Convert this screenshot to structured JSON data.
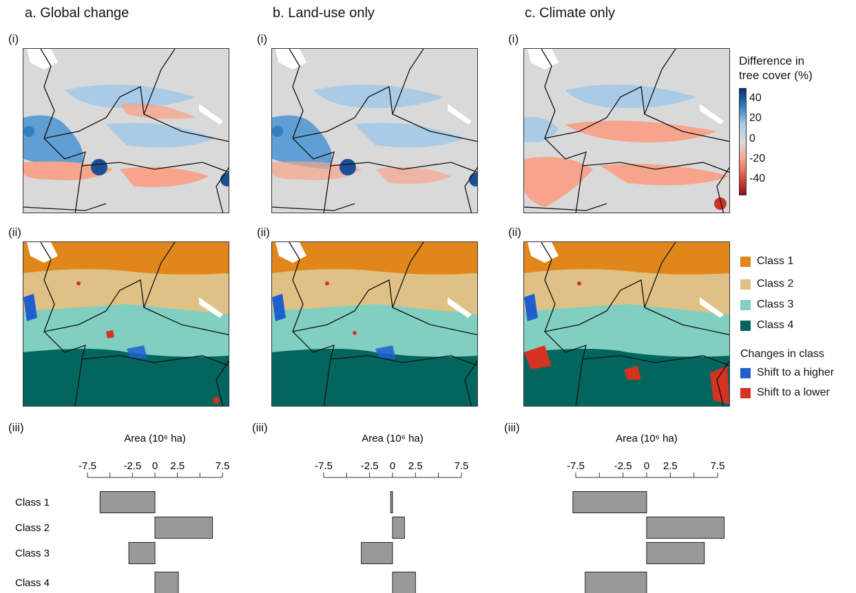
{
  "columns": [
    {
      "title": "a. Global change"
    },
    {
      "title": "b. Land-use only"
    },
    {
      "title": "c. Climate only"
    }
  ],
  "panel_tags": {
    "i": "(i)",
    "ii": "(ii)",
    "iii": "(iii)"
  },
  "tree_cover_legend": {
    "title_line1": "Difference in",
    "title_line2": "tree cover (%)",
    "ticks": [
      "40",
      "20",
      "0",
      "-20",
      "-40"
    ],
    "colors": [
      "#0b2e6b",
      "#2f7fc1",
      "#a9cbe6",
      "#d9d9d9",
      "#f6a58c",
      "#e0533f",
      "#8b0f1a"
    ]
  },
  "class_legend": {
    "items": [
      {
        "label": "Class 1",
        "color": "#e1861a"
      },
      {
        "label": "Class 2",
        "color": "#dfc085"
      },
      {
        "label": "Class 3",
        "color": "#80cfc0"
      },
      {
        "label": "Class 4",
        "color": "#03665e"
      }
    ],
    "changes_title": "Changes in class",
    "changes": [
      {
        "label": "Shift to a higher",
        "color": "#1f5ecf"
      },
      {
        "label": "Shift to a lower",
        "color": "#d63222"
      }
    ]
  },
  "chart_data": [
    {
      "type": "bar",
      "orientation": "horizontal",
      "xlabel": "Area (10⁶ ha)",
      "xlim": [
        -7.5,
        7.5
      ],
      "xticks": [
        -7.5,
        -2.5,
        0,
        2.5,
        7.5
      ],
      "tick_labels": [
        "-7.5",
        "-2.5",
        "0",
        "2.5",
        "7.5"
      ],
      "minor_ticks": [
        -5,
        5
      ],
      "categories": [
        "Class 1",
        "Class 2",
        "Class 3",
        "Class 4"
      ],
      "values": [
        -6.1,
        6.4,
        -2.9,
        2.6
      ],
      "bar_color": "#999999"
    },
    {
      "type": "bar",
      "orientation": "horizontal",
      "xlabel": "Area (10⁶ ha)",
      "xlim": [
        -7.5,
        7.5
      ],
      "xticks": [
        -7.5,
        -2.5,
        0,
        2.5,
        7.5
      ],
      "tick_labels": [
        "-7.5",
        "-2.5",
        "0",
        "2.5",
        "7.5"
      ],
      "minor_ticks": [
        -5,
        5
      ],
      "categories": [
        "Class 1",
        "Class 2",
        "Class 3",
        "Class 4"
      ],
      "values": [
        -0.2,
        1.3,
        -3.4,
        2.5
      ],
      "bar_color": "#999999"
    },
    {
      "type": "bar",
      "orientation": "horizontal",
      "xlabel": "Area (10⁶ ha)",
      "xlim": [
        -7.5,
        7.5
      ],
      "xticks": [
        -7.5,
        -2.5,
        0,
        2.5,
        7.5
      ],
      "tick_labels": [
        "-7.5",
        "-2.5",
        "0",
        "2.5",
        "7.5"
      ],
      "minor_ticks": [
        -5,
        5
      ],
      "categories": [
        "Class 1",
        "Class 2",
        "Class 3",
        "Class 4"
      ],
      "values": [
        -7.8,
        8.2,
        6.1,
        -6.5
      ],
      "bar_color": "#999999"
    }
  ]
}
